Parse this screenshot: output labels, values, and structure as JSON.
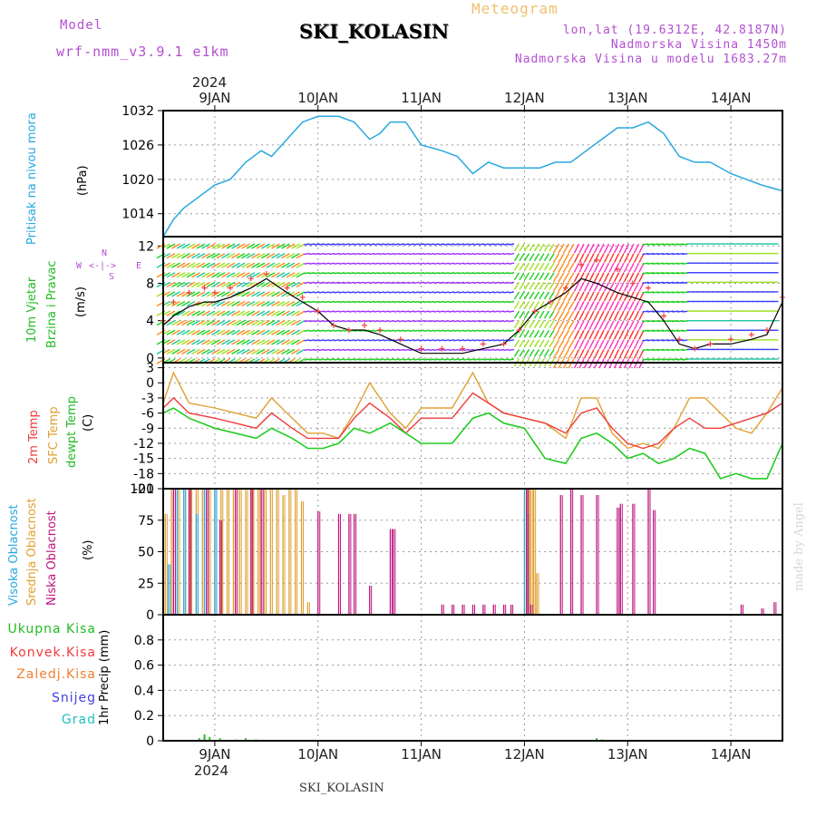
{
  "header": {
    "model_label": "Model",
    "model_name": "wrf-nmm_v3.9.1 e1km",
    "station": "SKI_KOLASIN",
    "product": "Meteogram",
    "lonlat": "lon,lat (19.6312E, 42.8187N)",
    "elevation": "Nadmorska Visina 1450m",
    "model_elevation": "Nadmorska Visina u modelu 1683.27m",
    "footer_station": "SKI_KOLASIN",
    "watermark": "made by Angel"
  },
  "colors": {
    "pressure": "#29a8e0",
    "wind_label": "#22bb22",
    "temp2m": "#f03c3c",
    "sfc": "#e0a030",
    "dewpt": "#22cc22",
    "high_cloud": "#29a8e0",
    "mid_cloud": "#e0a030",
    "low_cloud": "#c0157e",
    "purple": "#b24fd1"
  },
  "time_axis": {
    "year": "2024",
    "ticks": [
      "9JAN",
      "10JAN",
      "11JAN",
      "12JAN",
      "13JAN",
      "14JAN"
    ]
  },
  "panels": {
    "pressure": {
      "label": "Pritisak na nivou mora",
      "unit": "(hPa)"
    },
    "wind": {
      "label1": "10m Vjetar",
      "label2": "Brzina i Pravac",
      "unit": "(m/s)",
      "rose": {
        "n": "N",
        "w": "W",
        "e": "E",
        "s": "S"
      }
    },
    "temp": {
      "l1": "2m Temp",
      "l2": "SFC Temp",
      "l3": "dewpt Temp",
      "unit": "(C)"
    },
    "cloud": {
      "l1": "Visoka Oblacnost",
      "l2": "Srednja Oblacnost",
      "l3": "Niska Oblacnost",
      "unit": "(%)"
    },
    "precip": {
      "unit": "1hr Precip (mm)",
      "legend": [
        "Ukupna Kisa",
        "Konvek.Kisa",
        "Zaledj.Kisa",
        "Snijeg",
        "Grad"
      ],
      "legend_colors": [
        "#22bb22",
        "#f03c3c",
        "#f08030",
        "#4040e0",
        "#20c0c0"
      ]
    }
  },
  "chart_data": [
    {
      "type": "line",
      "title": "Pritisak na nivou mora",
      "ylabel": "(hPa)",
      "ylim": [
        1010,
        1032
      ],
      "yticks": [
        1014,
        1020,
        1026,
        1032
      ],
      "x_days": [
        8.5,
        8.6,
        8.7,
        8.85,
        9,
        9.15,
        9.3,
        9.45,
        9.55,
        9.65,
        9.75,
        9.85,
        10,
        10.2,
        10.35,
        10.5,
        10.6,
        10.7,
        10.85,
        11,
        11.2,
        11.35,
        11.5,
        11.65,
        11.8,
        12,
        12.15,
        12.3,
        12.45,
        12.6,
        12.75,
        12.9,
        13.05,
        13.2,
        13.35,
        13.5,
        13.65,
        13.8,
        14,
        14.15,
        14.3,
        14.5
      ],
      "series": [
        {
          "values": [
            1010,
            1013,
            1015,
            1017,
            1019,
            1020,
            1023,
            1025,
            1024,
            1026,
            1028,
            1030,
            1031,
            1031,
            1030,
            1027,
            1028,
            1030,
            1030,
            1026,
            1025,
            1024,
            1021,
            1023,
            1022,
            1022,
            1022,
            1023,
            1023,
            1025,
            1027,
            1029,
            1029,
            1030,
            1028,
            1024,
            1023,
            1023,
            1021,
            1020,
            1019,
            1018
          ]
        }
      ]
    },
    {
      "type": "line",
      "title": "10m Vjetar Brzina i Pravac",
      "ylabel": "(m/s)",
      "ylim": [
        -0.5,
        13
      ],
      "yticks": [
        0,
        4,
        8,
        12
      ],
      "x_days": [
        8.5,
        8.6,
        8.75,
        8.9,
        9,
        9.15,
        9.35,
        9.5,
        9.7,
        9.85,
        10,
        10.15,
        10.3,
        10.45,
        10.6,
        10.8,
        11,
        11.2,
        11.4,
        11.6,
        11.8,
        11.95,
        12.1,
        12.25,
        12.4,
        12.55,
        12.7,
        12.9,
        13.05,
        13.2,
        13.35,
        13.5,
        13.65,
        13.8,
        14,
        14.2,
        14.35,
        14.5
      ],
      "series": [
        {
          "name": "mean",
          "values": [
            3.5,
            4.5,
            5.5,
            6,
            6,
            6.5,
            7.5,
            8.5,
            7,
            6,
            5,
            3.5,
            3,
            3,
            2.5,
            1.5,
            0.5,
            0.5,
            0.5,
            1,
            1.5,
            3,
            5,
            6,
            7,
            8.5,
            8,
            7,
            6.5,
            6,
            4,
            1.5,
            1,
            1.5,
            1.5,
            2,
            2.5,
            6
          ]
        },
        {
          "name": "gust",
          "values": [
            4,
            6,
            7,
            7.5,
            7,
            7.5,
            8.5,
            9,
            7.5,
            6.5,
            5,
            3.5,
            3,
            3.5,
            3,
            2,
            1,
            1,
            1,
            1.5,
            1.5,
            3,
            5,
            6,
            7.5,
            10,
            10.5,
            9.5,
            8,
            7.5,
            4.5,
            2,
            1,
            1.5,
            2,
            2.5,
            3,
            6.5
          ]
        }
      ]
    },
    {
      "type": "line",
      "title": "Temp",
      "ylabel": "(C)",
      "ylim": [
        -21,
        4
      ],
      "yticks": [
        3,
        0,
        -3,
        -6,
        -9,
        -12,
        -15,
        -18,
        -21
      ],
      "x_days": [
        8.5,
        8.6,
        8.75,
        9,
        9.2,
        9.4,
        9.55,
        9.75,
        9.9,
        10.05,
        10.2,
        10.35,
        10.5,
        10.7,
        10.85,
        11,
        11.15,
        11.3,
        11.5,
        11.65,
        11.8,
        12,
        12.2,
        12.4,
        12.55,
        12.7,
        12.85,
        13,
        13.15,
        13.3,
        13.45,
        13.6,
        13.75,
        13.9,
        14.05,
        14.2,
        14.35,
        14.5
      ],
      "series": [
        {
          "name": "2m Temp",
          "values": [
            -5,
            -3,
            -6,
            -7,
            -8,
            -9,
            -6,
            -9,
            -11,
            -11,
            -11,
            -7,
            -4,
            -7,
            -10,
            -7,
            -7,
            -7,
            -2,
            -4,
            -6,
            -7,
            -8,
            -10,
            -6,
            -5,
            -9,
            -12,
            -13,
            -12,
            -9,
            -7,
            -9,
            -9,
            -8,
            -7,
            -6,
            -4
          ]
        },
        {
          "name": "SFC Temp",
          "values": [
            -4,
            2,
            -4,
            -5,
            -6,
            -7,
            -3,
            -7,
            -10,
            -10,
            -11,
            -6,
            0,
            -6,
            -9,
            -5,
            -5,
            -5,
            2,
            -4,
            -6,
            -7,
            -8,
            -11,
            -3,
            -3,
            -10,
            -13,
            -12,
            -13,
            -9,
            -3,
            -3,
            -6,
            -9,
            -10,
            -6,
            -1
          ]
        },
        {
          "name": "dewpt Temp",
          "values": [
            -6,
            -5,
            -7,
            -9,
            -10,
            -11,
            -9,
            -11,
            -13,
            -13,
            -12,
            -9,
            -10,
            -8,
            -10,
            -12,
            -12,
            -12,
            -7,
            -6,
            -8,
            -9,
            -15,
            -16,
            -11,
            -10,
            -12,
            -15,
            -14,
            -16,
            -15,
            -13,
            -14,
            -19,
            -18,
            -19,
            -19,
            -12
          ]
        }
      ]
    },
    {
      "type": "bar",
      "title": "Oblacnost",
      "ylabel": "(%)",
      "ylim": [
        0,
        100
      ],
      "yticks": [
        0,
        25,
        50,
        75,
        100
      ],
      "series": [
        {
          "name": "Visoka Oblacnost",
          "x_days": [
            8.55,
            8.62,
            8.7,
            8.82,
            8.9,
            9,
            12,
            12.02
          ],
          "values": [
            40,
            100,
            100,
            80,
            100,
            100,
            100,
            80
          ]
        },
        {
          "name": "Srednja Oblacnost",
          "x_days": [
            8.52,
            8.58,
            8.64,
            8.7,
            8.76,
            8.82,
            8.88,
            8.94,
            9,
            9.06,
            9.12,
            9.18,
            9.24,
            9.3,
            9.36,
            9.42,
            9.48,
            9.54,
            9.6,
            9.66,
            9.72,
            9.78,
            9.84,
            9.9,
            12.03,
            12.06,
            12.09,
            12.12
          ],
          "values": [
            80,
            100,
            100,
            100,
            100,
            100,
            100,
            100,
            100,
            100,
            100,
            100,
            100,
            100,
            100,
            100,
            100,
            100,
            100,
            95,
            100,
            100,
            90,
            10,
            100,
            100,
            100,
            33
          ]
        },
        {
          "name": "Niska Oblacnost",
          "x_days": [
            8.6,
            8.75,
            8.92,
            9.05,
            9.2,
            9.35,
            9.45,
            10,
            10.2,
            10.3,
            10.35,
            10.5,
            10.7,
            10.73,
            11.2,
            11.3,
            11.4,
            11.5,
            11.6,
            11.7,
            11.8,
            11.87,
            12.02,
            12.06,
            12.35,
            12.45,
            12.55,
            12.7,
            12.9,
            12.93,
            13.05,
            13.2,
            13.25,
            14.1,
            14.3,
            14.42
          ],
          "values": [
            100,
            100,
            100,
            75,
            100,
            100,
            100,
            82,
            80,
            80,
            80,
            23,
            68,
            68,
            8,
            8,
            8,
            8,
            8,
            8,
            8,
            8,
            100,
            8,
            95,
            100,
            95,
            95,
            85,
            88,
            88,
            100,
            83,
            8,
            5,
            10
          ]
        }
      ]
    },
    {
      "type": "bar",
      "title": "1hr Precip",
      "ylabel": "1hr Precip (mm)",
      "ylim": [
        0,
        1
      ],
      "yticks": [
        0,
        0.2,
        0.4,
        0.6,
        0.8
      ],
      "series": [
        {
          "name": "Ukupna Kisa",
          "x_days": [
            8.85,
            8.9,
            8.95,
            9.05,
            9.2,
            9.3,
            9.4,
            12.7,
            12.75
          ],
          "values": [
            0.02,
            0.05,
            0.03,
            0.02,
            0.01,
            0.02,
            0.01,
            0.02,
            0.01
          ]
        }
      ]
    }
  ]
}
